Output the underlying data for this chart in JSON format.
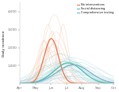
{
  "title": "",
  "ylabel": "Daily incidence",
  "xlabel": "",
  "xlim_days": [
    0,
    184
  ],
  "ylim": [
    0,
    4500
  ],
  "yticks": [
    1000,
    2000,
    3000,
    4000
  ],
  "ytick_labels": [
    "1,000",
    "2,000",
    "3,000",
    "4,000"
  ],
  "month_labels": [
    "Apr",
    "May",
    "Jun",
    "Jul",
    "Aug",
    "Sep",
    "Oct"
  ],
  "month_positions": [
    0,
    31,
    61,
    92,
    122,
    153,
    183
  ],
  "scenarios": {
    "no_intervention": {
      "color_bold": "#E8734A",
      "color_light": "#F5C4A8",
      "peak_day": 62,
      "peak_value": 2500,
      "spread": 14,
      "num_sims": 15,
      "sim_peak_day_std": 8,
      "sim_peak_val_low": 0.4,
      "sim_peak_val_high": 1.6,
      "sim_spread_low": 0.7,
      "sim_spread_high": 1.5
    },
    "social_distancing": {
      "color_bold": "#4DBFAD",
      "color_light": "#A8E0D8",
      "peak_day": 95,
      "peak_value": 1150,
      "spread": 28,
      "num_sims": 15,
      "sim_peak_day_std": 15,
      "sim_peak_val_low": 0.3,
      "sim_peak_val_high": 1.5,
      "sim_spread_low": 0.6,
      "sim_spread_high": 1.6
    },
    "comprehensive_testing": {
      "color_bold": "#7AAEC8",
      "color_light": "#B8D8EA",
      "peak_day": 105,
      "peak_value": 1050,
      "spread": 32,
      "num_sims": 15,
      "sim_peak_day_std": 18,
      "sim_peak_val_low": 0.3,
      "sim_peak_val_high": 1.4,
      "sim_spread_low": 0.6,
      "sim_spread_high": 1.8
    }
  },
  "legend_labels": [
    "No interventions",
    "Social distancing",
    "Comprehensive testing"
  ],
  "legend_colors": [
    "#E8734A",
    "#4DBFAD",
    "#7AAEC8"
  ],
  "background_color": "#ffffff"
}
